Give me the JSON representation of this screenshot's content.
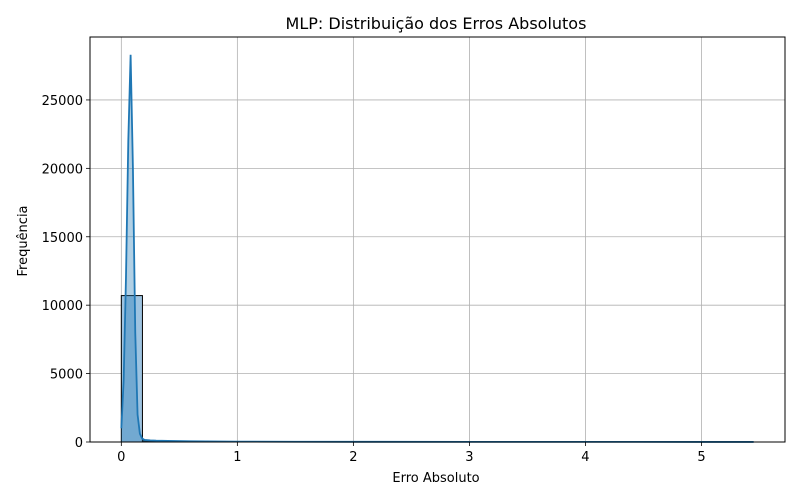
{
  "chart_data": {
    "type": "bar",
    "title": "MLP: Distribuição dos Erros Absolutos",
    "xlabel": "Erro Absoluto",
    "ylabel": "Frequência",
    "xlim": [
      -0.27,
      5.72
    ],
    "ylim": [
      0,
      29600
    ],
    "x_ticks": [
      0,
      1,
      2,
      3,
      4,
      5
    ],
    "y_ticks": [
      0,
      5000,
      10000,
      15000,
      20000,
      25000
    ],
    "grid": true,
    "legend": "none",
    "colors": {
      "bar_fill": "#9ec3e0",
      "bar_edge": "#000000",
      "kde_line": "#1f77b4",
      "kde_fill": "#1f77b4"
    },
    "histogram": {
      "bin_width": 0.182,
      "bins": [
        {
          "x0": 0.0,
          "x1": 0.182,
          "count": 10700
        },
        {
          "x0": 0.182,
          "x1": 0.364,
          "count": 80
        },
        {
          "x0": 0.364,
          "x1": 0.546,
          "count": 40
        },
        {
          "x0": 0.546,
          "x1": 0.728,
          "count": 25
        },
        {
          "x0": 0.728,
          "x1": 0.91,
          "count": 15
        },
        {
          "x0": 0.91,
          "x1": 1.092,
          "count": 10
        },
        {
          "x0": 1.092,
          "x1": 1.274,
          "count": 8
        },
        {
          "x0": 1.274,
          "x1": 1.456,
          "count": 6
        }
      ]
    },
    "kde": {
      "x": [
        0.0,
        0.02,
        0.04,
        0.06,
        0.08,
        0.1,
        0.12,
        0.14,
        0.16,
        0.18,
        0.2,
        0.25,
        0.3,
        0.4,
        0.6,
        1.0,
        1.5,
        2.0,
        3.0,
        4.0,
        5.0,
        5.45
      ],
      "y": [
        1000,
        4500,
        12000,
        22000,
        28300,
        20000,
        8000,
        2000,
        600,
        250,
        150,
        120,
        100,
        80,
        50,
        30,
        20,
        15,
        10,
        8,
        5,
        3
      ]
    }
  }
}
